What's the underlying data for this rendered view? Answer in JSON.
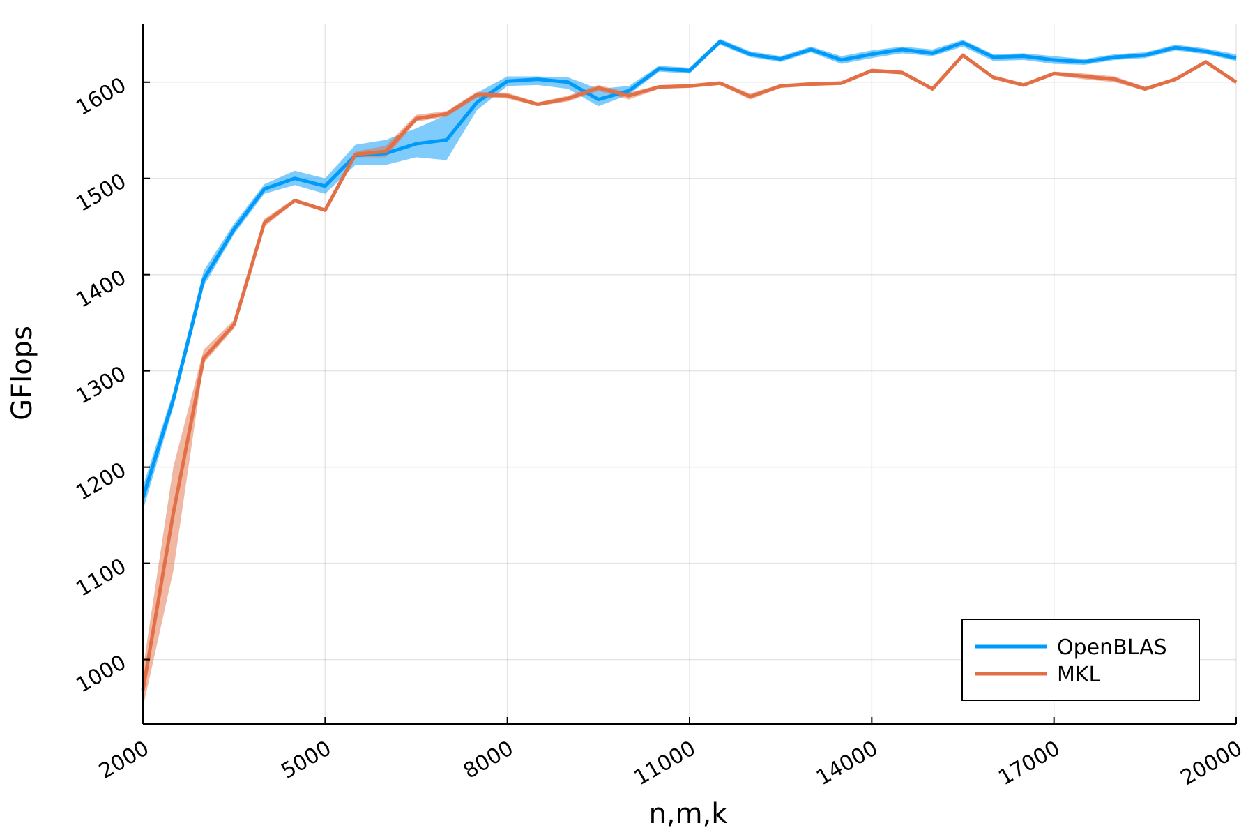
{
  "chart_data": {
    "type": "line",
    "xlabel": "n,m,k",
    "ylabel": "GFlops",
    "xlim": [
      2000,
      20000
    ],
    "ylim": [
      933,
      1660
    ],
    "xticks": [
      2000,
      5000,
      8000,
      11000,
      14000,
      17000,
      20000
    ],
    "yticks": [
      1000,
      1100,
      1200,
      1300,
      1400,
      1500,
      1600
    ],
    "grid": true,
    "legend_position": "bottom-right",
    "x": [
      2000,
      2500,
      3000,
      3500,
      4000,
      4500,
      5000,
      5500,
      6000,
      6500,
      7000,
      7500,
      8000,
      8500,
      9000,
      9500,
      10000,
      10500,
      11000,
      11500,
      12000,
      12500,
      13000,
      13500,
      14000,
      14500,
      15000,
      15500,
      16000,
      16500,
      17000,
      17500,
      18000,
      18500,
      19000,
      19500,
      20000
    ],
    "series": [
      {
        "name": "OpenBLAS",
        "color": "#009af9",
        "values": [
          1168,
          1270,
          1395,
          1447,
          1489,
          1500,
          1492,
          1524,
          1526,
          1536,
          1540,
          1579,
          1601,
          1603,
          1600,
          1582,
          1591,
          1614,
          1612,
          1642,
          1629,
          1624,
          1634,
          1623,
          1629,
          1634,
          1630,
          1641,
          1626,
          1627,
          1623,
          1621,
          1626,
          1628,
          1636,
          1632,
          1625
        ],
        "band_low": [
          1155,
          1262,
          1388,
          1442,
          1484,
          1493,
          1484,
          1514,
          1514,
          1522,
          1519,
          1571,
          1596,
          1597,
          1593,
          1575,
          1587,
          1611,
          1609,
          1639,
          1626,
          1621,
          1631,
          1619,
          1625,
          1630,
          1627,
          1637,
          1622,
          1623,
          1619,
          1618,
          1623,
          1625,
          1633,
          1629,
          1622
        ],
        "band_high": [
          1180,
          1278,
          1404,
          1453,
          1494,
          1508,
          1500,
          1535,
          1540,
          1552,
          1566,
          1589,
          1606,
          1606,
          1605,
          1593,
          1596,
          1617,
          1615,
          1645,
          1632,
          1627,
          1637,
          1627,
          1633,
          1637,
          1634,
          1644,
          1629,
          1630,
          1627,
          1624,
          1629,
          1631,
          1639,
          1635,
          1629
        ]
      },
      {
        "name": "MKL",
        "color": "#e26f46",
        "values": [
          968,
          1152,
          1313,
          1348,
          1454,
          1477,
          1467,
          1525,
          1528,
          1562,
          1567,
          1587,
          1586,
          1577,
          1583,
          1594,
          1586,
          1595,
          1596,
          1599,
          1585,
          1596,
          1598,
          1599,
          1612,
          1610,
          1593,
          1628,
          1605,
          1597,
          1609,
          1606,
          1603,
          1593,
          1603,
          1621,
          1600
        ],
        "band_low": [
          950,
          1092,
          1308,
          1344,
          1450,
          1475,
          1465,
          1522,
          1522,
          1559,
          1564,
          1584,
          1583,
          1575,
          1580,
          1591,
          1582,
          1593,
          1594,
          1597,
          1582,
          1594,
          1596,
          1597,
          1610,
          1608,
          1591,
          1626,
          1603,
          1595,
          1607,
          1603,
          1600,
          1591,
          1601,
          1619,
          1598
        ],
        "band_high": [
          990,
          1200,
          1322,
          1353,
          1458,
          1479,
          1469,
          1528,
          1534,
          1566,
          1570,
          1590,
          1589,
          1579,
          1586,
          1597,
          1589,
          1597,
          1598,
          1601,
          1588,
          1598,
          1600,
          1601,
          1614,
          1612,
          1595,
          1630,
          1607,
          1599,
          1611,
          1609,
          1606,
          1595,
          1605,
          1623,
          1602
        ]
      }
    ]
  }
}
